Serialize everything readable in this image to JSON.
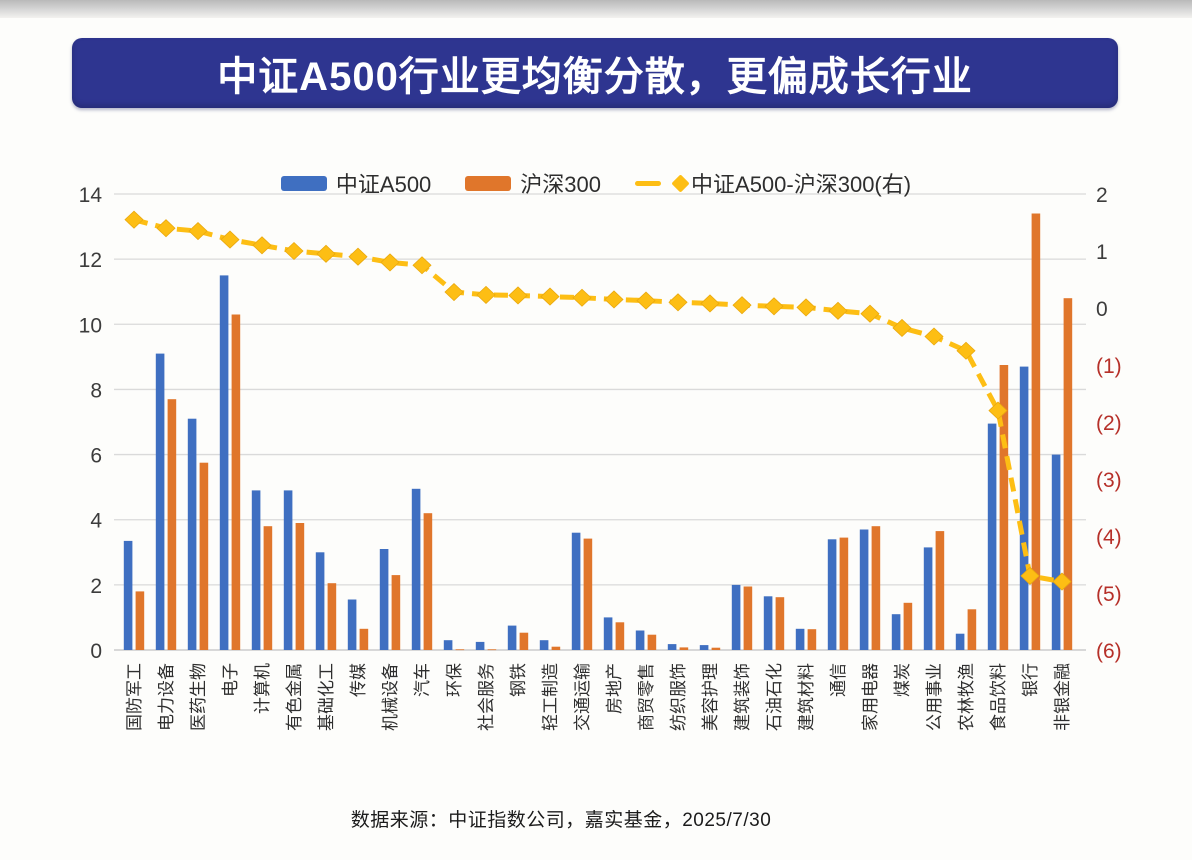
{
  "page": {
    "title": "中证A500行业更均衡分散，更偏成长行业",
    "source": "数据来源：中证指数公司，嘉实基金，2025/7/30"
  },
  "legend": [
    {
      "label": "中证A500",
      "type": "bar",
      "color": "#3f6fc1"
    },
    {
      "label": "沪深300",
      "type": "bar",
      "color": "#e0762b"
    },
    {
      "label": "中证A500-沪深300(右)",
      "type": "line",
      "color": "#fdbe14"
    }
  ],
  "chart_data": {
    "type": "bar",
    "title": "中证A500行业更均衡分散，更偏成长行业",
    "xlabel": "",
    "ylabel": "",
    "grid": true,
    "legend_position": "top",
    "categories": [
      "国防军工",
      "电力设备",
      "医药生物",
      "电子",
      "计算机",
      "有色金属",
      "基础化工",
      "传媒",
      "机械设备",
      "汽车",
      "环保",
      "社会服务",
      "钢铁",
      "轻工制造",
      "交通运输",
      "房地产",
      "商贸零售",
      "纺织服饰",
      "美容护理",
      "建筑装饰",
      "石油石化",
      "建筑材料",
      "通信",
      "家用电器",
      "煤炭",
      "公用事业",
      "农林牧渔",
      "食品饮料",
      "银行",
      "非银金融"
    ],
    "series": [
      {
        "name": "中证A500",
        "type": "bar",
        "axis": "left",
        "color": "#3f6fc1",
        "values": [
          3.35,
          9.1,
          7.1,
          11.5,
          4.9,
          4.9,
          3.0,
          1.55,
          3.1,
          4.95,
          0.3,
          0.25,
          0.75,
          0.3,
          3.6,
          1.0,
          0.6,
          0.18,
          0.15,
          2.0,
          1.65,
          0.65,
          3.4,
          3.7,
          1.1,
          3.15,
          0.5,
          6.95,
          8.7,
          6.0
        ]
      },
      {
        "name": "沪深300",
        "type": "bar",
        "axis": "left",
        "color": "#e0762b",
        "values": [
          1.8,
          7.7,
          5.75,
          10.3,
          3.8,
          3.9,
          2.05,
          0.65,
          2.3,
          4.2,
          0.02,
          0.02,
          0.53,
          0.1,
          3.42,
          0.85,
          0.47,
          0.08,
          0.07,
          1.95,
          1.62,
          0.64,
          3.45,
          3.8,
          1.45,
          3.65,
          1.25,
          8.75,
          13.4,
          10.8
        ]
      },
      {
        "name": "中证A500-沪深300(右)",
        "type": "line",
        "axis": "right",
        "color": "#fdbe14",
        "values": [
          1.55,
          1.4,
          1.35,
          1.2,
          1.1,
          1.0,
          0.95,
          0.9,
          0.8,
          0.75,
          0.28,
          0.23,
          0.22,
          0.2,
          0.18,
          0.15,
          0.13,
          0.1,
          0.08,
          0.05,
          0.03,
          0.01,
          -0.05,
          -0.1,
          -0.35,
          -0.5,
          -0.75,
          -1.8,
          -4.7,
          -4.8
        ]
      }
    ],
    "left_axis": {
      "min": 0,
      "max": 14,
      "step": 2,
      "ticks": [
        "0",
        "2",
        "4",
        "6",
        "8",
        "10",
        "12",
        "14"
      ]
    },
    "right_axis": {
      "min": -6,
      "max": 2,
      "step": 1,
      "ticks": [
        "2",
        "1",
        "0",
        "(1)",
        "(2)",
        "(3)",
        "(4)",
        "(5)",
        "(6)"
      ],
      "negative_color": "#b63029",
      "positive_color": "#3c3c3c"
    }
  }
}
